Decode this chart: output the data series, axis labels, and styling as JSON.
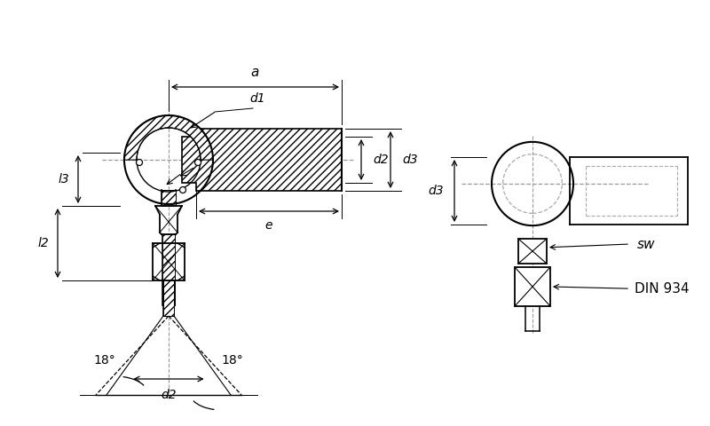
{
  "bg_color": "#ffffff",
  "line_color": "#000000",
  "dash_color": "#aaaaaa",
  "labels": {
    "a": "a",
    "d1": "d1",
    "d2": "d2",
    "d3": "d3",
    "e": "e",
    "l2": "l2",
    "l3": "l3",
    "sw": "sw",
    "din934": "DIN 934",
    "ang1": "18°",
    "ang2": "18°"
  },
  "font_size": 10,
  "font_size_large": 11
}
